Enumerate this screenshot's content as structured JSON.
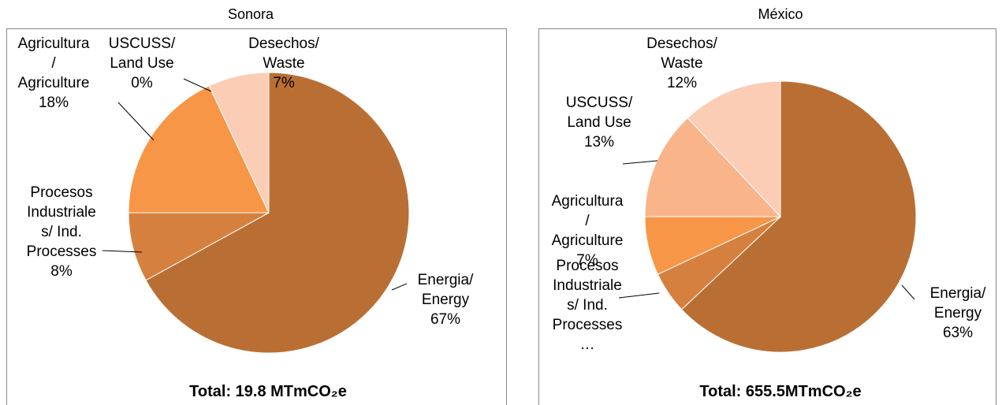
{
  "chart_data": [
    {
      "type": "pie",
      "title": "Sonora",
      "categories": [
        "Energia/ Energy",
        "Procesos Industriales/ Ind. Processes",
        "Agricultura/ Agriculture",
        "USCUSS/ Land Use",
        "Desechos/ Waste"
      ],
      "values": [
        67,
        8,
        18,
        0,
        7
      ],
      "value_labels": [
        "67%",
        "8%",
        "18%",
        "0%",
        "7%"
      ],
      "colors": [
        "#b96f34",
        "#d68040",
        "#f79646",
        "#f9b48a",
        "#fbcdb5"
      ],
      "annotation": "Total: 19.8 MTmCO₂e"
    },
    {
      "type": "pie",
      "title": "México",
      "categories": [
        "Energia/ Energy",
        "Procesos Industriales/ Ind. Processes…",
        "Agricultura/ Agriculture",
        "USCUSS/ Land Use",
        "Desechos/ Waste"
      ],
      "values": [
        63,
        5,
        7,
        13,
        12
      ],
      "value_labels": [
        "63%",
        null,
        "7%",
        "13%",
        "12%"
      ],
      "colors": [
        "#b96f34",
        "#d68040",
        "#f79646",
        "#f9b48a",
        "#fbcdb5"
      ],
      "annotation": "Total: 655.5MTmCO₂e"
    }
  ]
}
